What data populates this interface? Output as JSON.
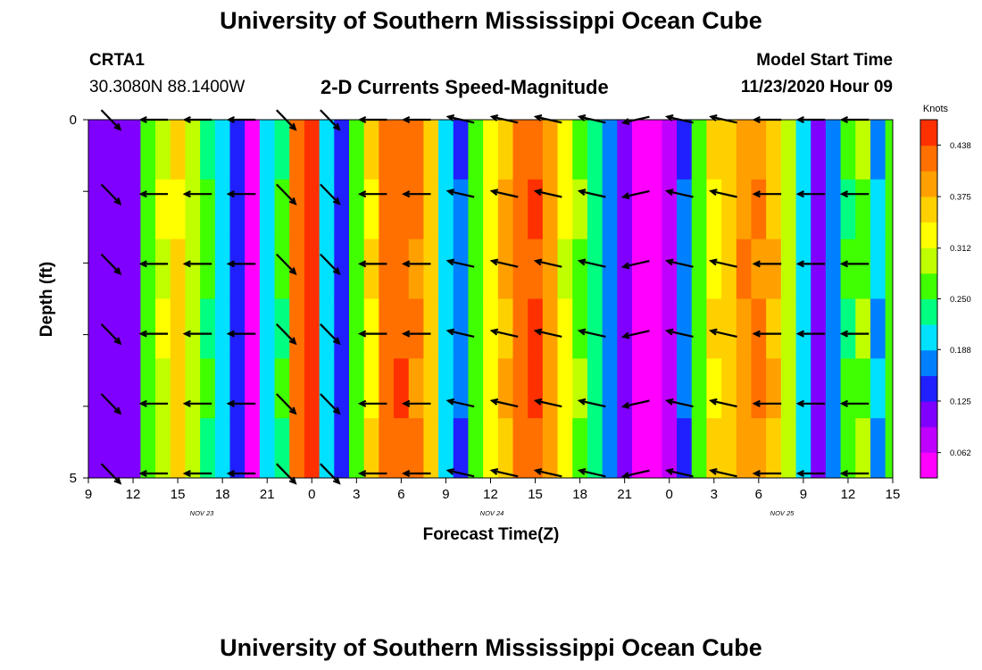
{
  "page": {
    "title_top": "University of Southern Mississippi Ocean Cube",
    "title_bottom": "University of Southern Mississippi Ocean Cube",
    "station_id": "CRTA1",
    "station_coords": "30.3080N 88.1400W",
    "subtitle": "2-D Currents Speed-Magnitude",
    "model_start_label": "Model Start Time",
    "model_start_value": "11/23/2020 Hour 09"
  },
  "chart_data": {
    "type": "heatmap",
    "title": "2-D Currents Speed-Magnitude",
    "xlabel": "Forecast Time(Z)",
    "ylabel": "Depth (ft)",
    "x_tick_labels": [
      "9",
      "12",
      "15",
      "18",
      "21",
      "0",
      "3",
      "6",
      "9",
      "12",
      "15",
      "18",
      "21",
      "0",
      "3",
      "6",
      "9",
      "12",
      "15"
    ],
    "date_labels": [
      "NOV 23",
      "NOV 24",
      "NOV 25"
    ],
    "y_tick_labels": [
      "0",
      "5"
    ],
    "ylim": [
      0,
      5
    ],
    "forecast_hours": [
      9,
      10,
      11,
      12,
      13,
      14,
      15,
      16,
      17,
      18,
      19,
      20,
      21,
      22,
      23,
      0,
      1,
      2,
      3,
      4,
      5,
      6,
      7,
      8,
      9,
      10,
      11,
      12,
      13,
      14,
      15,
      16,
      17,
      18,
      19,
      20,
      21,
      22,
      23,
      0,
      1,
      2,
      3,
      4,
      5,
      6,
      7,
      8,
      9,
      10,
      11,
      12,
      13,
      14,
      15
    ],
    "speed_knots": [
      0.1,
      0.11,
      0.1,
      0.12,
      0.27,
      0.31,
      0.35,
      0.29,
      0.25,
      0.21,
      0.13,
      0.06,
      0.21,
      0.25,
      0.42,
      0.47,
      0.2,
      0.15,
      0.26,
      0.34,
      0.42,
      0.43,
      0.41,
      0.36,
      0.21,
      0.16,
      0.26,
      0.33,
      0.38,
      0.42,
      0.44,
      0.39,
      0.32,
      0.28,
      0.24,
      0.18,
      0.1,
      0.06,
      0.05,
      0.09,
      0.16,
      0.27,
      0.34,
      0.36,
      0.4,
      0.41,
      0.37,
      0.3,
      0.21,
      0.12,
      0.17,
      0.25,
      0.28,
      0.19,
      0.27
    ],
    "colorbar": {
      "label": "Knots",
      "tick_labels": [
        "0.438",
        "0.375",
        "0.312",
        "0.250",
        "0.188",
        "0.125",
        "0.062"
      ],
      "min": 0.031,
      "max": 0.469,
      "colors": [
        "#ff00ff",
        "#c000ff",
        "#8000ff",
        "#2020ff",
        "#0080ff",
        "#00e0ff",
        "#00ff80",
        "#40ff00",
        "#c0ff00",
        "#ffff00",
        "#ffd000",
        "#ffa000",
        "#ff7000",
        "#ff3000"
      ]
    },
    "vector_grid": {
      "depth_rows": 6,
      "columns": [
        {
          "label": "9",
          "dir": "se"
        },
        {
          "label": "12",
          "dir": "w"
        },
        {
          "label": "14",
          "dir": "w"
        },
        {
          "label": "16",
          "dir": "w"
        },
        {
          "label": "22",
          "dir": "se"
        },
        {
          "label": "1",
          "dir": "se"
        },
        {
          "label": "4",
          "dir": "w"
        },
        {
          "label": "7",
          "dir": "w"
        },
        {
          "label": "10",
          "dir": "wnw"
        },
        {
          "label": "13",
          "dir": "wnw"
        },
        {
          "label": "16",
          "dir": "wnw"
        },
        {
          "label": "19",
          "dir": "wnw"
        },
        {
          "label": "22",
          "dir": "wsw"
        },
        {
          "label": "1",
          "dir": "wnw"
        },
        {
          "label": "4",
          "dir": "wnw"
        },
        {
          "label": "7",
          "dir": "w"
        },
        {
          "label": "10",
          "dir": "w"
        },
        {
          "label": "13",
          "dir": "w"
        }
      ]
    }
  }
}
